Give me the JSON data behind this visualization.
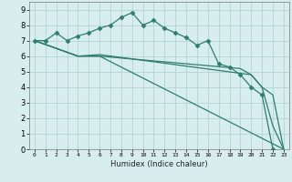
{
  "xlabel": "Humidex (Indice chaleur)",
  "background_color": "#d8eeee",
  "grid_color": "#b8d8d8",
  "line_color": "#2e7d6e",
  "xlim": [
    -0.5,
    23.5
  ],
  "ylim": [
    0,
    9.5
  ],
  "xticks": [
    0,
    1,
    2,
    3,
    4,
    5,
    6,
    7,
    8,
    9,
    10,
    11,
    12,
    13,
    14,
    15,
    16,
    17,
    18,
    19,
    20,
    21,
    22,
    23
  ],
  "yticks": [
    0,
    1,
    2,
    3,
    4,
    5,
    6,
    7,
    8,
    9
  ],
  "series1": {
    "x": [
      0,
      1,
      2,
      3,
      4,
      5,
      6,
      7,
      8,
      9,
      10,
      11,
      12,
      13,
      14,
      15,
      16,
      17,
      18,
      19,
      20,
      21,
      22,
      23
    ],
    "y": [
      7,
      7,
      7.5,
      7.0,
      7.3,
      7.5,
      7.8,
      8.0,
      8.5,
      8.8,
      8.0,
      8.3,
      7.8,
      7.5,
      7.2,
      6.7,
      7.0,
      5.5,
      5.3,
      4.8,
      4.0,
      3.5,
      0.0,
      null
    ]
  },
  "series": [
    {
      "x": [
        0,
        1,
        2,
        3,
        4,
        5,
        6,
        7,
        8,
        9,
        10,
        11,
        12,
        13,
        14,
        15,
        16,
        17,
        18,
        19,
        20,
        21,
        22
      ],
      "y": [
        7.0,
        7.0,
        7.5,
        7.0,
        7.3,
        7.5,
        7.8,
        8.0,
        8.5,
        8.8,
        8.0,
        8.3,
        7.8,
        7.5,
        7.2,
        6.7,
        7.0,
        5.5,
        5.3,
        4.8,
        4.0,
        3.5,
        0.0
      ],
      "marker": true
    },
    {
      "x": [
        0,
        4,
        6,
        23
      ],
      "y": [
        7.0,
        6.0,
        6.0,
        0.0
      ],
      "marker": false
    },
    {
      "x": [
        0,
        4,
        6,
        19,
        20,
        21,
        22,
        23
      ],
      "y": [
        7.0,
        6.0,
        6.0,
        5.2,
        4.8,
        4.0,
        1.5,
        0.0
      ],
      "marker": false
    },
    {
      "x": [
        0,
        4,
        6,
        20,
        21,
        22,
        23
      ],
      "y": [
        7.0,
        6.0,
        6.1,
        4.8,
        4.0,
        3.5,
        0.0
      ],
      "marker": false
    }
  ]
}
